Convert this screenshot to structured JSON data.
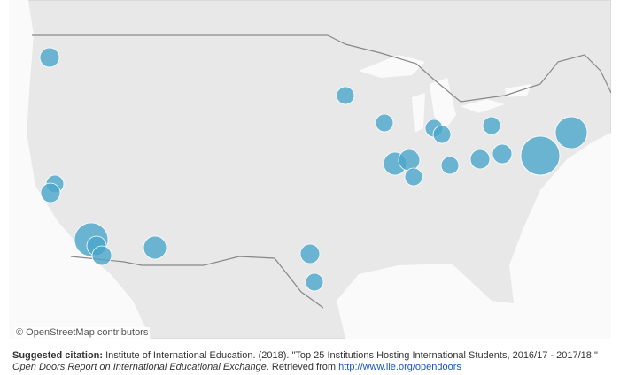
{
  "map": {
    "attribution": "© OpenStreetMap contributors"
  },
  "citation": {
    "label": "Suggested citation:",
    "text": " Institute of International Education. (2018). \"Top 25 Institutions Hosting International Students, 2016/17 - 2017/18.\" ",
    "source": "Open Doors Report on International Educational Exchange",
    "retrieved": ". Retrieved from ",
    "link": "http://www.iie.org/opendoors"
  }
}
